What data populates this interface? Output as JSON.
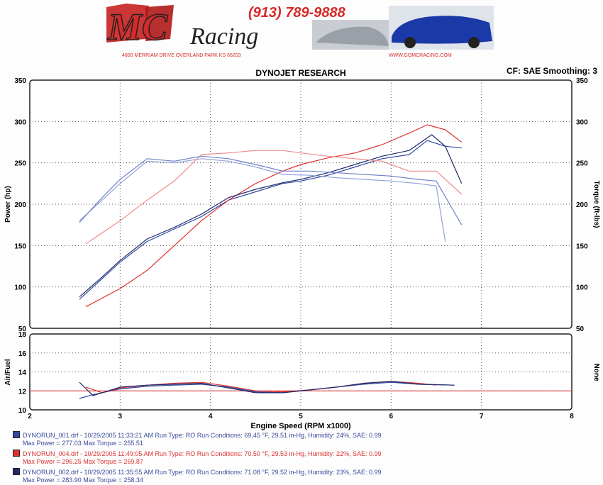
{
  "header": {
    "logo_text": "MC Racing",
    "phone": "(913) 789-9888",
    "address": "4800 MERRIAM DRIVE  OVERLAND PARK KS 66203",
    "website": "WWW.GOMCRACING.COM"
  },
  "colors": {
    "blue": "#3347a0",
    "red": "#e03030",
    "pink": "#f08a8a",
    "lightblue": "#8fa2d8",
    "navy": "#1e2a6a"
  },
  "chart_data": [
    {
      "type": "line",
      "title": "DYNOJET RESEARCH",
      "info": "CF: SAE  Smoothing: 3",
      "xlabel": "Engine Speed (RPM x1000)",
      "ylabel": "Power (hp)",
      "ylabel_right": "Torque (ft-lbs)",
      "xlim": [
        2,
        8
      ],
      "ylim": [
        50,
        350
      ],
      "x_ticks": [
        "2",
        "3",
        "4",
        "5",
        "6",
        "7",
        "8"
      ],
      "y_ticks": [
        "50",
        "100",
        "150",
        "200",
        "250",
        "300",
        "350"
      ],
      "grid": true,
      "series": [
        {
          "name": "DYNORUN_001 Power",
          "color": "#3347a0",
          "x": [
            2.55,
            2.8,
            3.0,
            3.3,
            3.6,
            3.9,
            4.2,
            4.5,
            4.8,
            5.0,
            5.3,
            5.6,
            5.9,
            6.2,
            6.4,
            6.6,
            6.78
          ],
          "y": [
            85,
            110,
            130,
            155,
            170,
            185,
            205,
            215,
            225,
            228,
            235,
            245,
            255,
            260,
            277,
            270,
            268
          ]
        },
        {
          "name": "DYNORUN_004 Power",
          "color": "#e03030",
          "x": [
            2.62,
            3.0,
            3.3,
            3.6,
            3.9,
            4.2,
            4.5,
            4.8,
            5.0,
            5.3,
            5.6,
            5.9,
            6.2,
            6.4,
            6.6,
            6.78
          ],
          "y": [
            76,
            98,
            120,
            150,
            180,
            205,
            225,
            240,
            248,
            256,
            262,
            272,
            286,
            296,
            290,
            275
          ]
        },
        {
          "name": "DYNORUN_002 Power",
          "color": "#1e2a6a",
          "x": [
            2.55,
            2.8,
            3.0,
            3.3,
            3.6,
            3.9,
            4.2,
            4.5,
            4.8,
            5.0,
            5.3,
            5.6,
            5.9,
            6.2,
            6.45,
            6.6,
            6.78
          ],
          "y": [
            88,
            112,
            132,
            158,
            172,
            188,
            208,
            218,
            226,
            230,
            238,
            248,
            258,
            265,
            284,
            270,
            225
          ]
        },
        {
          "name": "DYNORUN_001 Torque",
          "color": "#8fa2d8",
          "x": [
            2.55,
            2.8,
            3.0,
            3.3,
            3.6,
            3.9,
            4.2,
            4.5,
            4.8,
            5.1,
            5.4,
            5.7,
            6.0,
            6.3,
            6.5,
            6.6
          ],
          "y": [
            180,
            205,
            225,
            252,
            250,
            255,
            252,
            245,
            236,
            235,
            232,
            230,
            228,
            225,
            222,
            155
          ]
        },
        {
          "name": "DYNORUN_004 Torque",
          "color": "#f08a8a",
          "x": [
            2.62,
            3.0,
            3.3,
            3.6,
            3.9,
            4.2,
            4.5,
            4.8,
            5.0,
            5.3,
            5.6,
            5.9,
            6.2,
            6.5,
            6.78
          ],
          "y": [
            152,
            180,
            205,
            228,
            260,
            262,
            265,
            265,
            262,
            258,
            255,
            252,
            240,
            240,
            212
          ]
        },
        {
          "name": "DYNORUN_002 Torque",
          "color": "#6e80c8",
          "x": [
            2.55,
            2.8,
            3.0,
            3.3,
            3.6,
            3.9,
            4.2,
            4.5,
            4.8,
            5.1,
            5.4,
            5.7,
            6.0,
            6.3,
            6.5,
            6.78
          ],
          "y": [
            178,
            208,
            230,
            255,
            252,
            258,
            255,
            248,
            240,
            240,
            238,
            236,
            234,
            230,
            228,
            175
          ]
        }
      ]
    },
    {
      "type": "line",
      "xlabel": "Engine Speed (RPM x1000)",
      "ylabel": "Air/Fuel",
      "ylabel_right": "None",
      "xlim": [
        2,
        8
      ],
      "ylim": [
        10,
        18
      ],
      "x_ticks": [
        "2",
        "3",
        "4",
        "5",
        "6",
        "7",
        "8"
      ],
      "y_ticks": [
        "10",
        "12",
        "14",
        "16",
        "18"
      ],
      "reference_line": 12.0,
      "grid": true,
      "series": [
        {
          "name": "DYNORUN_001 AFR",
          "color": "#3347a0",
          "x": [
            2.55,
            2.7,
            3.0,
            3.3,
            3.6,
            3.9,
            4.2,
            4.5,
            4.8,
            5.1,
            5.4,
            5.7,
            6.0,
            6.3,
            6.7
          ],
          "y": [
            11.2,
            11.6,
            12.2,
            12.5,
            12.6,
            12.7,
            12.4,
            11.9,
            11.8,
            12.1,
            12.4,
            12.7,
            12.9,
            12.7,
            12.6
          ]
        },
        {
          "name": "DYNORUN_004 AFR",
          "color": "#e03030",
          "x": [
            2.62,
            2.8,
            3.0,
            3.3,
            3.6,
            3.9,
            4.2,
            4.5,
            4.8,
            5.1,
            5.4,
            5.7,
            6.0,
            6.3,
            6.5
          ],
          "y": [
            12.4,
            11.8,
            12.3,
            12.6,
            12.8,
            12.9,
            12.5,
            12.0,
            11.9,
            12.1,
            12.4,
            12.8,
            13.0,
            12.8,
            12.6
          ]
        },
        {
          "name": "DYNORUN_002 AFR",
          "color": "#1e2a6a",
          "x": [
            2.55,
            2.7,
            3.0,
            3.3,
            3.6,
            3.9,
            4.2,
            4.5,
            4.8,
            5.1,
            5.4,
            5.7,
            6.0,
            6.3,
            6.7
          ],
          "y": [
            12.9,
            11.5,
            12.4,
            12.6,
            12.7,
            12.8,
            12.3,
            11.8,
            11.8,
            12.1,
            12.4,
            12.8,
            13.0,
            12.7,
            12.6
          ]
        }
      ]
    }
  ],
  "legend": [
    {
      "run": "DYNORUN_001.drf - 10/29/2005 11:33:21 AM  Run Type: RO  Run Conditions: 69.45 °F, 29.51 in-Hg,  Humidity: 24%, SAE: 0.99",
      "stats": "Max Power = 277.03  Max Torque = 255.51",
      "color": "#3347a0"
    },
    {
      "run": "DYNORUN_004.drf - 10/29/2005 11:49:05 AM  Run Type: RO  Run Conditions: 70.50 °F, 29.53 in-Hg,  Humidity: 22%, SAE: 0.99",
      "stats": "Max Power = 296.25  Max Torque = 269.87",
      "color": "#e03030"
    },
    {
      "run": "DYNORUN_002.drf - 10/29/2005 11:35:55 AM  Run Type: RO  Run Conditions: 71.08 °F, 29.52 in-Hg,  Humidity: 23%, SAE: 0.99",
      "stats": "Max Power = 283.90  Max Torque = 258.34",
      "color": "#1e2a6a"
    }
  ]
}
